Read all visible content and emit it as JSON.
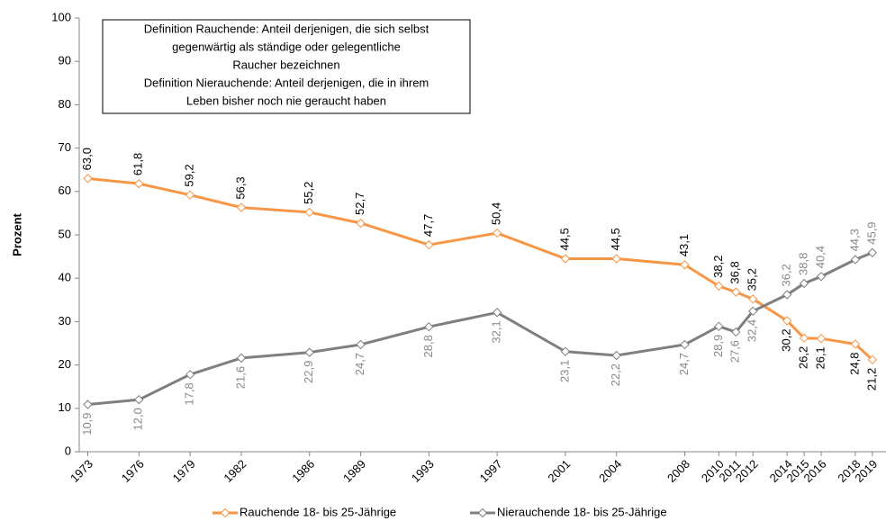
{
  "chart_data": {
    "type": "line",
    "y_label": "Prozent",
    "annotation": [
      "Definition Rauchende: Anteil derjenigen, die sich selbst",
      "gegenwärtig als ständige oder gelegentliche",
      "Raucher bezeichnen",
      "Definition Nierauchende: Anteil derjenigen, die in ihrem",
      "Leben bisher noch nie geraucht haben"
    ],
    "x": [
      1973,
      1976,
      1979,
      1982,
      1986,
      1989,
      1993,
      1997,
      2001,
      2004,
      2008,
      2010,
      2011,
      2012,
      2014,
      2015,
      2016,
      2018,
      2019
    ],
    "xticks": [
      1973,
      1976,
      1979,
      1982,
      1986,
      1989,
      1993,
      1997,
      2001,
      2004,
      2008,
      2010,
      2011,
      2012,
      2014,
      2015,
      2016,
      2018,
      2019
    ],
    "xlim": [
      1972.5,
      2019.8
    ],
    "ylim": [
      0,
      100
    ],
    "yticks": [
      0,
      10,
      20,
      30,
      40,
      50,
      60,
      70,
      80,
      90,
      100
    ],
    "grid": false,
    "legend": "bottom",
    "series": [
      {
        "name": "Rauchende 18- bis 25-Jährige",
        "color": "#f79646",
        "values": [
          63.0,
          61.8,
          59.2,
          56.3,
          55.2,
          52.7,
          47.7,
          50.4,
          44.5,
          44.5,
          43.1,
          38.2,
          36.8,
          35.2,
          30.2,
          26.2,
          26.1,
          24.8,
          21.2
        ],
        "value_labels": [
          "63,0",
          "61,8",
          "59,2",
          "56,3",
          "55,2",
          "52,7",
          "47,7",
          "50,4",
          "44,5",
          "44,5",
          "43,1",
          "38,2",
          "36,8",
          "35,2",
          "30,2",
          "26,2",
          "26,1",
          "24,8",
          "21,2"
        ]
      },
      {
        "name": "Nierauchende 18- bis 25-Jährige",
        "color": "#7f7f7f",
        "values": [
          10.9,
          12.0,
          17.8,
          21.6,
          22.9,
          24.7,
          28.8,
          32.1,
          23.1,
          22.2,
          24.7,
          28.9,
          27.6,
          32.4,
          36.2,
          38.8,
          40.4,
          44.3,
          45.9
        ],
        "value_labels": [
          "10,9",
          "12,0",
          "17,8",
          "21,6",
          "22,9",
          "24,7",
          "28,8",
          "32,1",
          "23,1",
          "22,2",
          "24,7",
          "28,9",
          "27,6",
          "32,4",
          "36,2",
          "38,8",
          "40,4",
          "44,3",
          "45,9"
        ]
      }
    ]
  }
}
